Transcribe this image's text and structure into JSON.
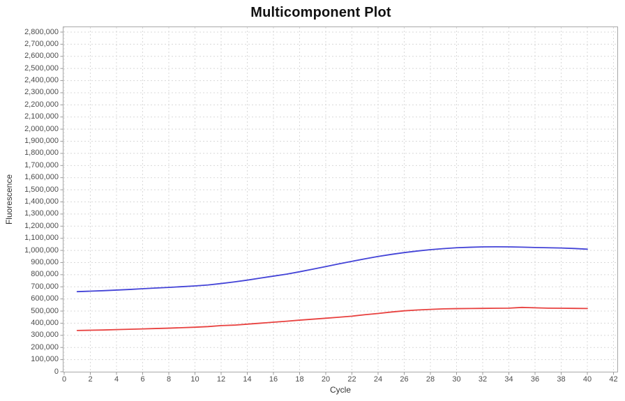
{
  "chart_data": {
    "type": "line",
    "title": "Multicomponent Plot",
    "xlabel": "Cycle",
    "ylabel": "Fluorescence",
    "xlim": [
      0,
      42
    ],
    "ylim": [
      0,
      2800000
    ],
    "x_tick_step": 2,
    "y_tick_step": 100000,
    "grid": true,
    "legend_position": "none",
    "x": [
      1,
      2,
      3,
      4,
      5,
      6,
      7,
      8,
      9,
      10,
      11,
      12,
      13,
      14,
      15,
      16,
      17,
      18,
      19,
      20,
      21,
      22,
      23,
      24,
      25,
      26,
      27,
      28,
      29,
      30,
      31,
      32,
      33,
      34,
      35,
      36,
      37,
      38,
      39,
      40
    ],
    "series": [
      {
        "name": "blue-trace",
        "color": "#4343d7",
        "values": [
          660000,
          664000,
          668000,
          673000,
          678000,
          684000,
          690000,
          695000,
          701000,
          707000,
          715000,
          727000,
          740000,
          755000,
          772000,
          788000,
          804000,
          824000,
          845000,
          867000,
          889000,
          910000,
          931000,
          950000,
          967000,
          982000,
          995000,
          1006000,
          1015000,
          1022000,
          1026000,
          1029000,
          1030000,
          1029000,
          1027000,
          1024000,
          1022000,
          1020000,
          1016000,
          1010000
        ]
      },
      {
        "name": "red-trace",
        "color": "#e8413f",
        "values": [
          340000,
          342000,
          344000,
          347000,
          350000,
          353000,
          356000,
          359000,
          363000,
          367000,
          372000,
          380000,
          384000,
          392000,
          400000,
          408000,
          416000,
          425000,
          433000,
          441000,
          449000,
          458000,
          470000,
          480000,
          492000,
          502000,
          509000,
          514000,
          518000,
          520000,
          521000,
          522000,
          523000,
          524000,
          530000,
          527000,
          524000,
          523000,
          522000,
          521000
        ]
      }
    ],
    "style": {
      "grid_color": "#d8d8d8",
      "border_color": "#a8a8a8",
      "tick_color": "#9a9a9a"
    }
  }
}
